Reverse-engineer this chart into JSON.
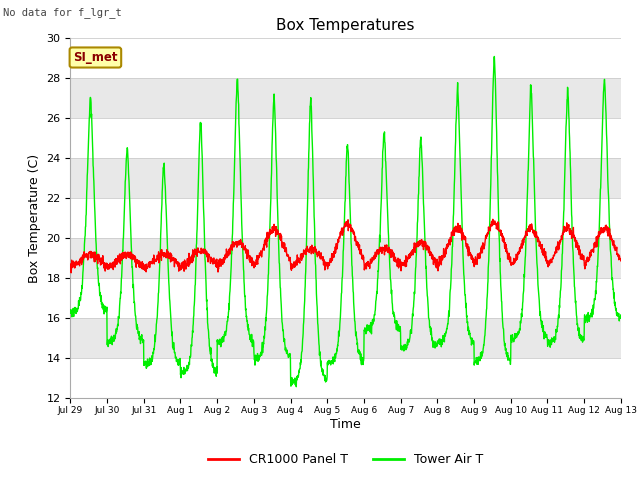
{
  "title": "Box Temperatures",
  "xlabel": "Time",
  "ylabel": "Box Temperature (C)",
  "ylim": [
    12,
    30
  ],
  "yticks": [
    12,
    14,
    16,
    18,
    20,
    22,
    24,
    26,
    28,
    30
  ],
  "background_color": "#ffffff",
  "plot_bg_color": "#f0f0f0",
  "band_color_light": "#ffffff",
  "band_color_dark": "#e8e8e8",
  "no_data_text": "No data for f_lgr_t",
  "si_met_label": "SI_met",
  "legend_entries": [
    "CR1000 Panel T",
    "Tower Air T"
  ],
  "red_color": "#ff0000",
  "green_color": "#00ee00",
  "x_tick_labels": [
    "Jul 29",
    "Jul 30",
    "Jul 31",
    "Aug 1",
    "Aug 2",
    "Aug 3",
    "Aug 4",
    "Aug 5",
    "Aug 6",
    "Aug 7",
    "Aug 8",
    "Aug 9",
    "Aug 10",
    "Aug 11",
    "Aug 12",
    "Aug 13"
  ],
  "days": 15
}
